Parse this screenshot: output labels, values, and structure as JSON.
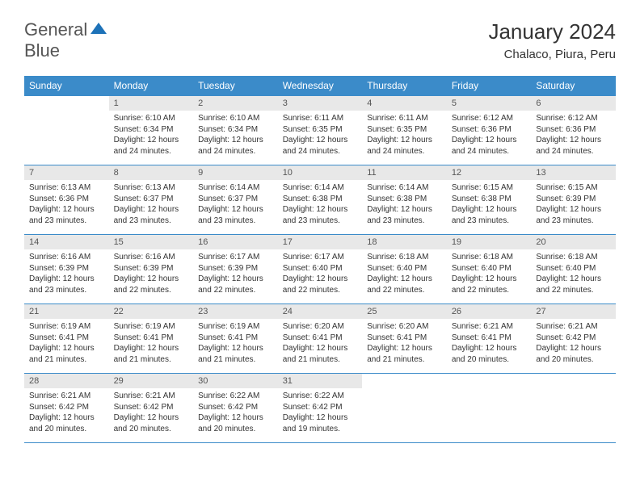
{
  "brand": {
    "line1": "General",
    "line2": "Blue"
  },
  "title": "January 2024",
  "location": "Chalaco, Piura, Peru",
  "colors": {
    "header_bg": "#3b8bc9",
    "header_text": "#ffffff",
    "daynum_bg": "#e8e8e8",
    "border": "#3b8bc9",
    "brand_blue": "#1d72b8",
    "text": "#333333",
    "background": "#ffffff"
  },
  "weekdays": [
    "Sunday",
    "Monday",
    "Tuesday",
    "Wednesday",
    "Thursday",
    "Friday",
    "Saturday"
  ],
  "calendar": {
    "start_weekday": 1,
    "days": [
      {
        "n": 1,
        "sunrise": "6:10 AM",
        "sunset": "6:34 PM",
        "daylight": "12 hours and 24 minutes."
      },
      {
        "n": 2,
        "sunrise": "6:10 AM",
        "sunset": "6:34 PM",
        "daylight": "12 hours and 24 minutes."
      },
      {
        "n": 3,
        "sunrise": "6:11 AM",
        "sunset": "6:35 PM",
        "daylight": "12 hours and 24 minutes."
      },
      {
        "n": 4,
        "sunrise": "6:11 AM",
        "sunset": "6:35 PM",
        "daylight": "12 hours and 24 minutes."
      },
      {
        "n": 5,
        "sunrise": "6:12 AM",
        "sunset": "6:36 PM",
        "daylight": "12 hours and 24 minutes."
      },
      {
        "n": 6,
        "sunrise": "6:12 AM",
        "sunset": "6:36 PM",
        "daylight": "12 hours and 24 minutes."
      },
      {
        "n": 7,
        "sunrise": "6:13 AM",
        "sunset": "6:36 PM",
        "daylight": "12 hours and 23 minutes."
      },
      {
        "n": 8,
        "sunrise": "6:13 AM",
        "sunset": "6:37 PM",
        "daylight": "12 hours and 23 minutes."
      },
      {
        "n": 9,
        "sunrise": "6:14 AM",
        "sunset": "6:37 PM",
        "daylight": "12 hours and 23 minutes."
      },
      {
        "n": 10,
        "sunrise": "6:14 AM",
        "sunset": "6:38 PM",
        "daylight": "12 hours and 23 minutes."
      },
      {
        "n": 11,
        "sunrise": "6:14 AM",
        "sunset": "6:38 PM",
        "daylight": "12 hours and 23 minutes."
      },
      {
        "n": 12,
        "sunrise": "6:15 AM",
        "sunset": "6:38 PM",
        "daylight": "12 hours and 23 minutes."
      },
      {
        "n": 13,
        "sunrise": "6:15 AM",
        "sunset": "6:39 PM",
        "daylight": "12 hours and 23 minutes."
      },
      {
        "n": 14,
        "sunrise": "6:16 AM",
        "sunset": "6:39 PM",
        "daylight": "12 hours and 23 minutes."
      },
      {
        "n": 15,
        "sunrise": "6:16 AM",
        "sunset": "6:39 PM",
        "daylight": "12 hours and 22 minutes."
      },
      {
        "n": 16,
        "sunrise": "6:17 AM",
        "sunset": "6:39 PM",
        "daylight": "12 hours and 22 minutes."
      },
      {
        "n": 17,
        "sunrise": "6:17 AM",
        "sunset": "6:40 PM",
        "daylight": "12 hours and 22 minutes."
      },
      {
        "n": 18,
        "sunrise": "6:18 AM",
        "sunset": "6:40 PM",
        "daylight": "12 hours and 22 minutes."
      },
      {
        "n": 19,
        "sunrise": "6:18 AM",
        "sunset": "6:40 PM",
        "daylight": "12 hours and 22 minutes."
      },
      {
        "n": 20,
        "sunrise": "6:18 AM",
        "sunset": "6:40 PM",
        "daylight": "12 hours and 22 minutes."
      },
      {
        "n": 21,
        "sunrise": "6:19 AM",
        "sunset": "6:41 PM",
        "daylight": "12 hours and 21 minutes."
      },
      {
        "n": 22,
        "sunrise": "6:19 AM",
        "sunset": "6:41 PM",
        "daylight": "12 hours and 21 minutes."
      },
      {
        "n": 23,
        "sunrise": "6:19 AM",
        "sunset": "6:41 PM",
        "daylight": "12 hours and 21 minutes."
      },
      {
        "n": 24,
        "sunrise": "6:20 AM",
        "sunset": "6:41 PM",
        "daylight": "12 hours and 21 minutes."
      },
      {
        "n": 25,
        "sunrise": "6:20 AM",
        "sunset": "6:41 PM",
        "daylight": "12 hours and 21 minutes."
      },
      {
        "n": 26,
        "sunrise": "6:21 AM",
        "sunset": "6:41 PM",
        "daylight": "12 hours and 20 minutes."
      },
      {
        "n": 27,
        "sunrise": "6:21 AM",
        "sunset": "6:42 PM",
        "daylight": "12 hours and 20 minutes."
      },
      {
        "n": 28,
        "sunrise": "6:21 AM",
        "sunset": "6:42 PM",
        "daylight": "12 hours and 20 minutes."
      },
      {
        "n": 29,
        "sunrise": "6:21 AM",
        "sunset": "6:42 PM",
        "daylight": "12 hours and 20 minutes."
      },
      {
        "n": 30,
        "sunrise": "6:22 AM",
        "sunset": "6:42 PM",
        "daylight": "12 hours and 20 minutes."
      },
      {
        "n": 31,
        "sunrise": "6:22 AM",
        "sunset": "6:42 PM",
        "daylight": "12 hours and 19 minutes."
      }
    ]
  },
  "labels": {
    "sunrise": "Sunrise:",
    "sunset": "Sunset:",
    "daylight": "Daylight:"
  }
}
